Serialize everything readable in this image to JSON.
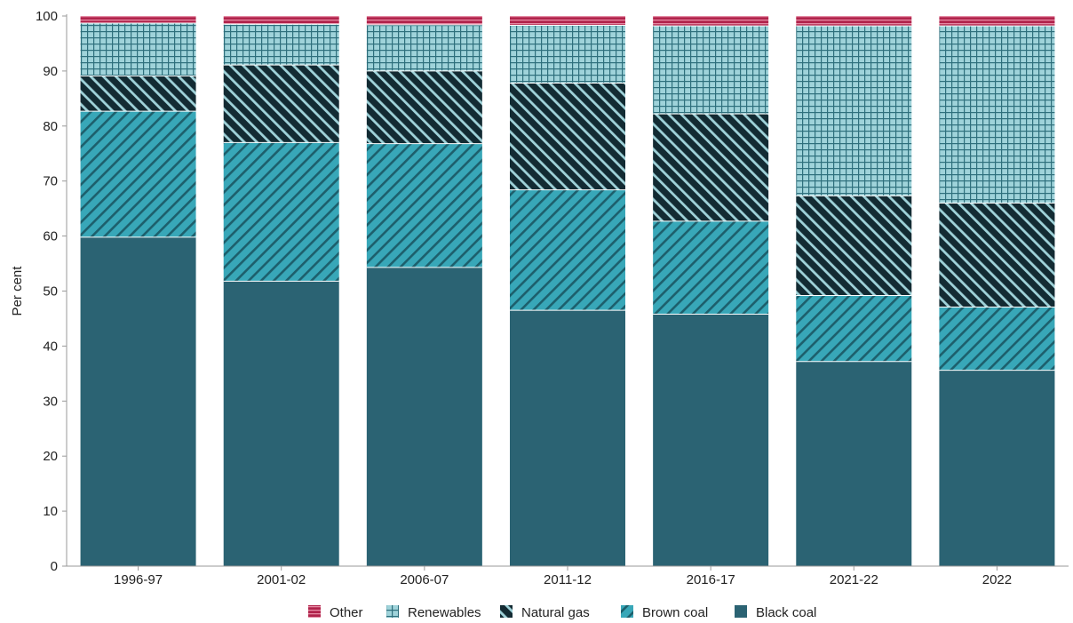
{
  "chart_data": {
    "type": "bar",
    "stacked": true,
    "categories": [
      "1996-97",
      "2001-02",
      "2006-07",
      "2011-12",
      "2016-17",
      "2021-22",
      "2022"
    ],
    "ylabel": "Per cent",
    "ylim": [
      0,
      100
    ],
    "yticks": [
      0,
      10,
      20,
      30,
      40,
      50,
      60,
      70,
      80,
      90,
      100
    ],
    "grid": false,
    "legend_position": "bottom",
    "series": [
      {
        "name": "Black coal",
        "color": "#2b6373",
        "pattern": "solid",
        "values": [
          59.8,
          51.8,
          54.3,
          46.5,
          45.8,
          37.2,
          35.6
        ]
      },
      {
        "name": "Brown coal",
        "color": "#38a7b8",
        "pattern": "diagonal-up",
        "values": [
          22.9,
          25.2,
          22.5,
          21.9,
          16.9,
          12.0,
          11.5
        ]
      },
      {
        "name": "Natural gas",
        "color": "#132b33",
        "pattern": "diagonal-down",
        "values": [
          6.4,
          14.1,
          13.2,
          19.4,
          19.5,
          18.1,
          18.9
        ]
      },
      {
        "name": "Renewables",
        "color": "#8fcfd6",
        "pattern": "grid",
        "values": [
          9.6,
          7.4,
          8.4,
          10.5,
          16.0,
          30.9,
          32.2
        ]
      },
      {
        "name": "Other",
        "color": "#b0234b",
        "pattern": "stripe",
        "values": [
          1.3,
          1.5,
          1.6,
          1.7,
          1.8,
          1.8,
          1.8
        ]
      }
    ]
  }
}
